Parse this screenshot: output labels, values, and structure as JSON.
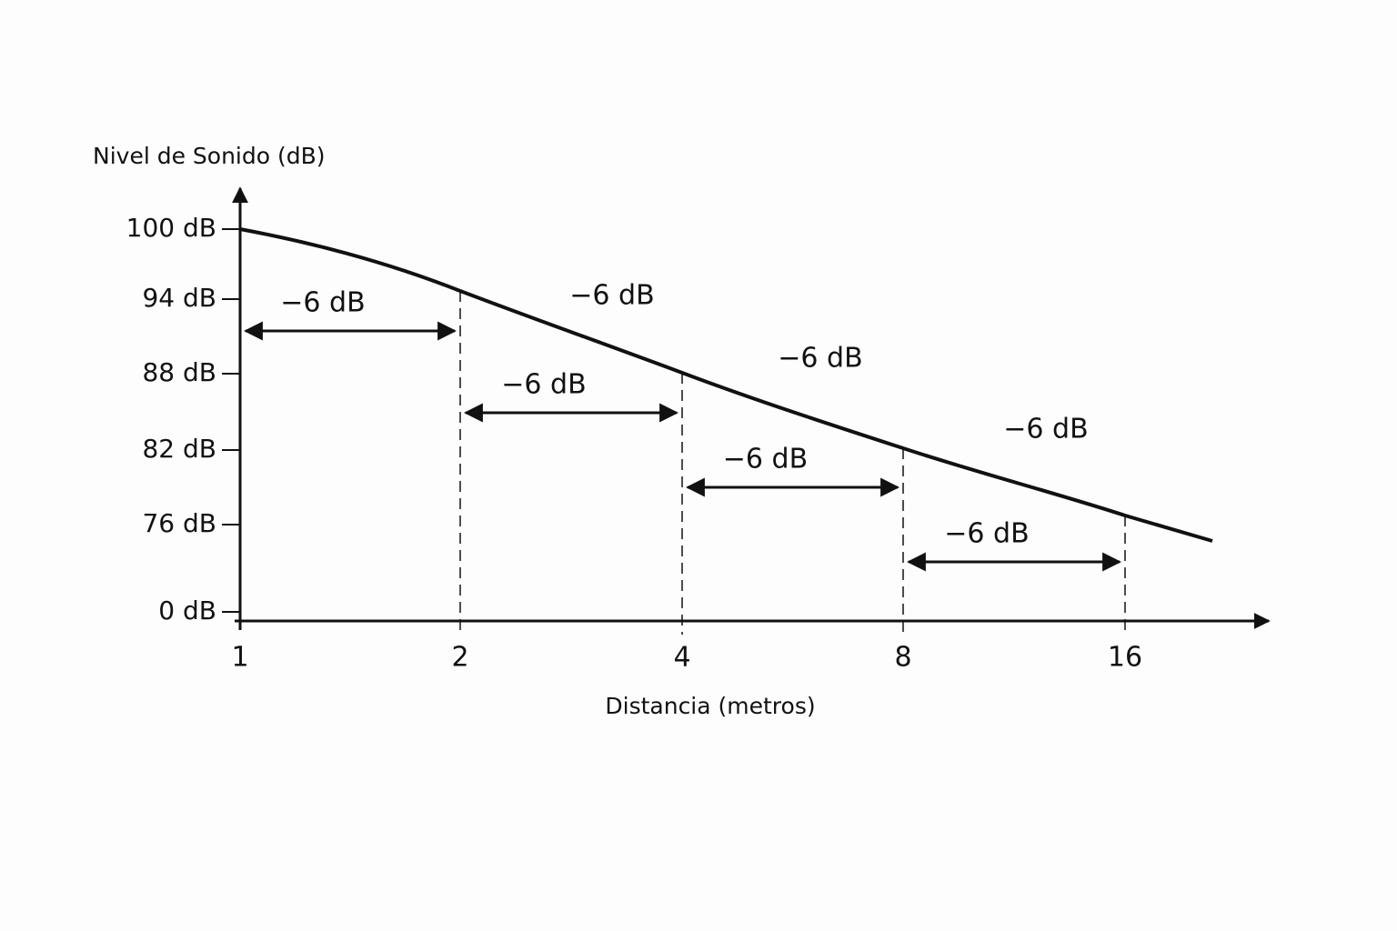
{
  "y_axis": {
    "title": "Nivel de Sonido (dB)",
    "ticks": [
      "100 dB",
      "94 dB",
      "88 dB",
      "82 dB",
      "76 dB",
      "0 dB"
    ]
  },
  "x_axis": {
    "title": "Distancia (metros)",
    "ticks": [
      "1",
      "2",
      "4",
      "8",
      "16"
    ]
  },
  "interval_labels": [
    "−6 dB",
    "−6 dB",
    "−6 dB",
    "−6 dB"
  ],
  "curve_labels": [
    "−6 dB",
    "−6 dB",
    "−6 dB"
  ]
}
